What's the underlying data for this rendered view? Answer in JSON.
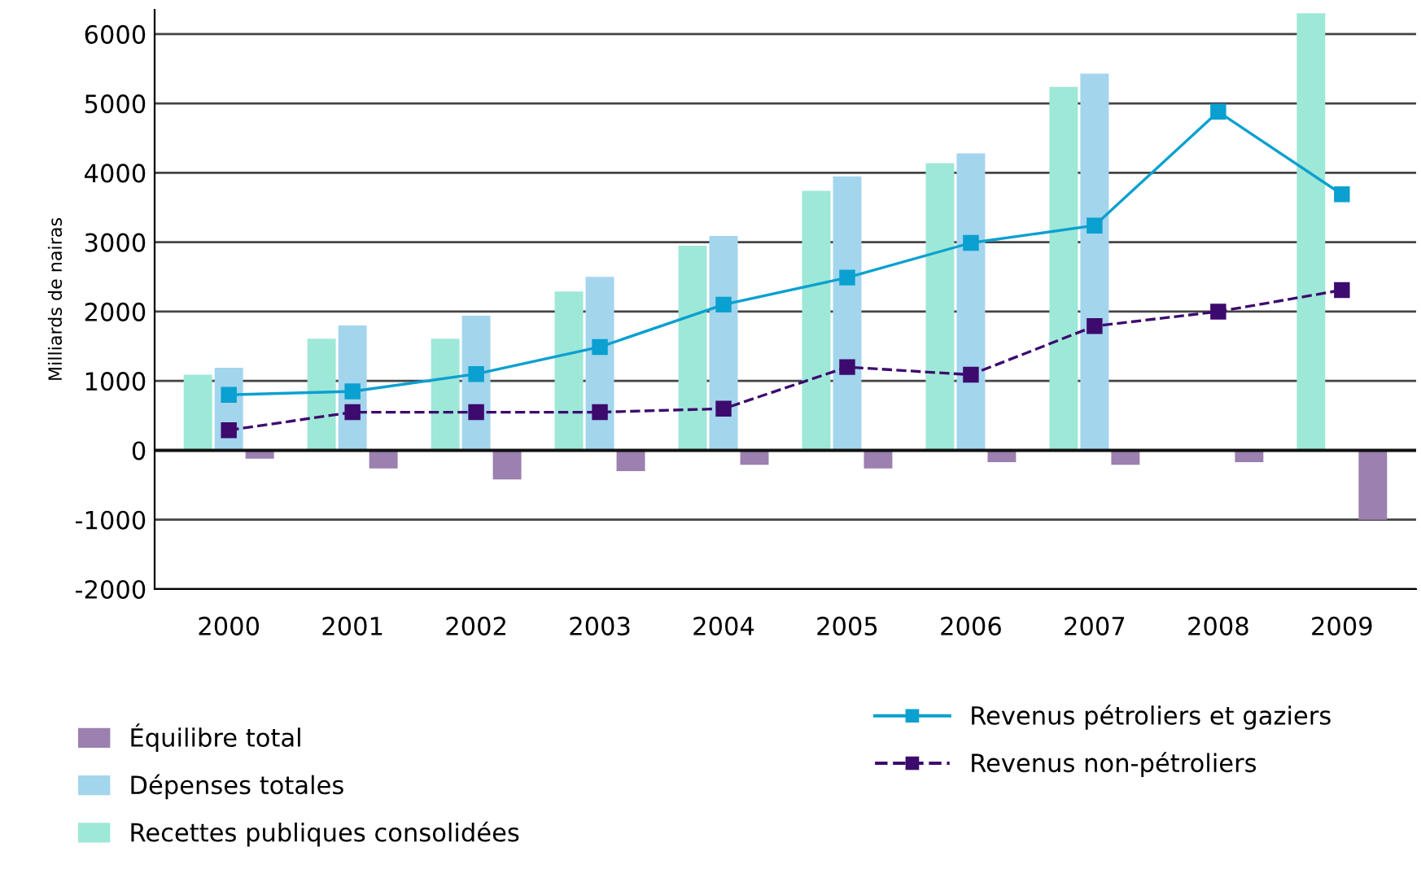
{
  "chart_data": {
    "type": "bar",
    "ylabel": "Milliards de nairas",
    "categories": [
      "2000",
      "2001",
      "2002",
      "2003",
      "2004",
      "2005",
      "2006",
      "2007",
      "2008",
      "2009"
    ],
    "series": [
      {
        "name": "Recettes publiques consolidées",
        "color": "#9ee8d8",
        "values": [
          1090,
          1610,
          1610,
          2290,
          2950,
          3740,
          4140,
          5240,
          null,
          6300
        ]
      },
      {
        "name": "Dépenses totales",
        "color": "#a3d5ed",
        "values": [
          1190,
          1800,
          1940,
          2500,
          3090,
          3950,
          4280,
          5430,
          null,
          null
        ]
      },
      {
        "name": "Équilibre total",
        "color": "#9b80b0",
        "values": [
          -120,
          -260,
          -420,
          -300,
          -210,
          -260,
          -170,
          -210,
          -170,
          -1000
        ]
      },
      {
        "name": "Revenus pétroliers et gaziers",
        "type": "line",
        "color": "#0aa0d0",
        "marker": "square",
        "line_style": "solid",
        "values": [
          800,
          850,
          1100,
          1490,
          2100,
          2490,
          2990,
          3240,
          4880,
          3690
        ]
      },
      {
        "name": "Revenus non-pétroliers",
        "type": "line",
        "color": "#3d0a6e",
        "marker": "square",
        "line_style": "dashed",
        "values": [
          290,
          550,
          550,
          550,
          600,
          1200,
          1090,
          1790,
          2000,
          2310
        ]
      }
    ],
    "ylim": [
      -2000,
      6350
    ],
    "yticks": [
      -2000,
      -1000,
      0,
      1000,
      2000,
      3000,
      4000,
      5000,
      6000
    ],
    "grid": "y",
    "legend": "bottom"
  }
}
